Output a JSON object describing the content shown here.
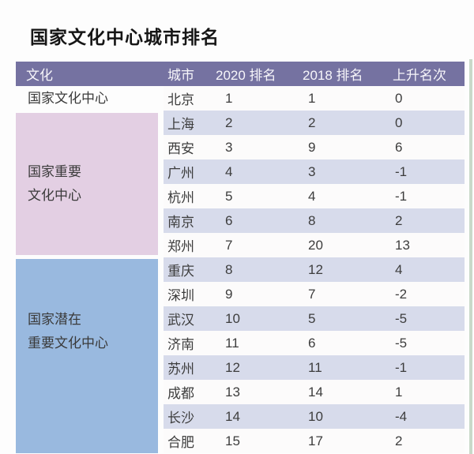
{
  "title": "国家文化中心城市排名",
  "table": {
    "headers": [
      "文化",
      "城市",
      "2020 排名",
      "2018 排名",
      "上升名次"
    ],
    "groups": [
      {
        "category": "国家文化中心",
        "lines": [
          "国家文化中心"
        ],
        "bg": "#fdfdfd",
        "rows": [
          [
            "北京",
            "1",
            "1",
            "0"
          ]
        ]
      },
      {
        "category": "国家重要文化中心",
        "lines": [
          "国家重要",
          "文化中心"
        ],
        "bg": "#e3cfe3",
        "rows": [
          [
            "上海",
            "2",
            "2",
            "0"
          ],
          [
            "西安",
            "3",
            "9",
            "6"
          ],
          [
            "广州",
            "4",
            "3",
            "-1"
          ],
          [
            "杭州",
            "5",
            "4",
            "-1"
          ],
          [
            "南京",
            "6",
            "8",
            "2"
          ],
          [
            "郑州",
            "7",
            "20",
            "13"
          ]
        ]
      },
      {
        "category": "国家潜在重要文化中心",
        "lines": [
          "国家潜在",
          "重要文化中心"
        ],
        "bg": "#99b9df",
        "rows": [
          [
            "重庆",
            "8",
            "12",
            "4"
          ],
          [
            "深圳",
            "9",
            "7",
            "-2"
          ],
          [
            "武汉",
            "10",
            "5",
            "-5"
          ],
          [
            "济南",
            "11",
            "6",
            "-5"
          ],
          [
            "苏州",
            "12",
            "11",
            "-1"
          ],
          [
            "成都",
            "13",
            "14",
            "1"
          ],
          [
            "长沙",
            "14",
            "10",
            "-4"
          ],
          [
            "合肥",
            "15",
            "17",
            "2"
          ]
        ]
      }
    ]
  },
  "colors": {
    "header_bg": "#7572a1",
    "header_text": "#f7f6fa",
    "tier1_bg": "#fdfdfd",
    "tier2_bg": "#e3cfe3",
    "tier3_bg": "#99b9df",
    "row_stripe": "#d7dbeb",
    "row_plain": "#fcfbfb",
    "edge_strip": "#c9d9c9",
    "text": "#3d3d3d"
  },
  "chart_data": {
    "type": "table",
    "title": "国家文化中心城市排名",
    "columns": [
      "文化",
      "城市",
      "2020 排名",
      "2018 排名",
      "上升名次"
    ],
    "rows": [
      [
        "国家文化中心",
        "北京",
        1,
        1,
        0
      ],
      [
        "国家重要文化中心",
        "上海",
        2,
        2,
        0
      ],
      [
        "国家重要文化中心",
        "西安",
        3,
        9,
        6
      ],
      [
        "国家重要文化中心",
        "广州",
        4,
        3,
        -1
      ],
      [
        "国家重要文化中心",
        "杭州",
        5,
        4,
        -1
      ],
      [
        "国家重要文化中心",
        "南京",
        6,
        8,
        2
      ],
      [
        "国家重要文化中心",
        "郑州",
        7,
        20,
        13
      ],
      [
        "国家潜在重要文化中心",
        "重庆",
        8,
        12,
        4
      ],
      [
        "国家潜在重要文化中心",
        "深圳",
        9,
        7,
        -2
      ],
      [
        "国家潜在重要文化中心",
        "武汉",
        10,
        5,
        -5
      ],
      [
        "国家潜在重要文化中心",
        "济南",
        11,
        6,
        -5
      ],
      [
        "国家潜在重要文化中心",
        "苏州",
        12,
        11,
        -1
      ],
      [
        "国家潜在重要文化中心",
        "成都",
        13,
        14,
        1
      ],
      [
        "国家潜在重要文化中心",
        "长沙",
        14,
        10,
        -4
      ],
      [
        "国家潜在重要文化中心",
        "合肥",
        15,
        17,
        2
      ]
    ],
    "notes": "ranking table; striped rows; tier groups color-coded in first column"
  }
}
